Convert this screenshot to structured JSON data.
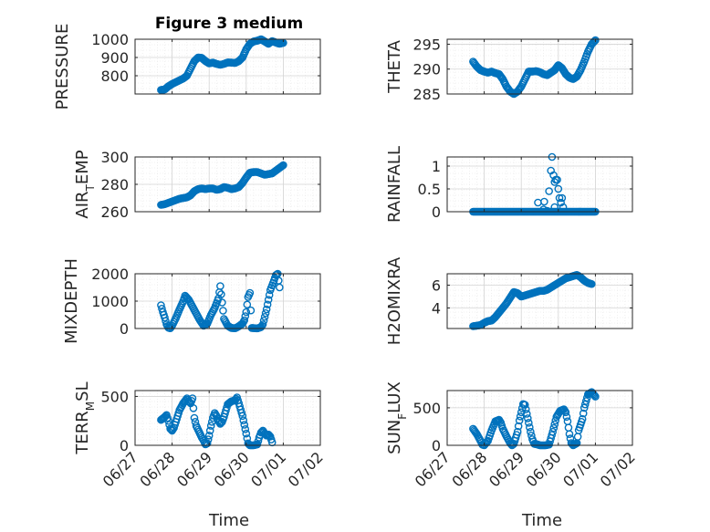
{
  "figure_title": "Figure 3 medium",
  "colors": {
    "marker": "#0072BD",
    "axes": "#262626",
    "grid": "#dcdcdc",
    "bg": "#ffffff"
  },
  "chart_data": [
    {
      "id": "pressure",
      "type": "scatter",
      "ylabel": "PRESSURE",
      "ylim": [
        700,
        1000
      ],
      "yticks": [
        800,
        900,
        1000
      ],
      "xlim": [
        0,
        5
      ],
      "grid": true,
      "keys": [
        [
          0.7,
          722
        ],
        [
          0.8,
          725
        ],
        [
          0.9,
          742
        ],
        [
          1.0,
          755
        ],
        [
          1.1,
          765
        ],
        [
          1.2,
          775
        ],
        [
          1.3,
          785
        ],
        [
          1.4,
          800
        ],
        [
          1.5,
          840
        ],
        [
          1.6,
          880
        ],
        [
          1.7,
          900
        ],
        [
          1.8,
          898
        ],
        [
          1.9,
          880
        ],
        [
          2.0,
          868
        ],
        [
          2.1,
          872
        ],
        [
          2.2,
          865
        ],
        [
          2.3,
          860
        ],
        [
          2.4,
          865
        ],
        [
          2.5,
          873
        ],
        [
          2.6,
          872
        ],
        [
          2.7,
          870
        ],
        [
          2.8,
          880
        ],
        [
          2.9,
          900
        ],
        [
          3.0,
          945
        ],
        [
          3.1,
          975
        ],
        [
          3.2,
          988
        ],
        [
          3.3,
          992
        ],
        [
          3.4,
          1000
        ],
        [
          3.5,
          988
        ],
        [
          3.6,
          975
        ],
        [
          3.7,
          990
        ],
        [
          3.8,
          982
        ],
        [
          3.9,
          975
        ],
        [
          4.0,
          980
        ]
      ]
    },
    {
      "id": "theta",
      "type": "scatter",
      "ylabel": "THETA",
      "ylim": [
        285,
        296
      ],
      "yticks": [
        285,
        290,
        295
      ],
      "xlim": [
        0,
        5
      ],
      "grid": true,
      "keys": [
        [
          0.7,
          291.5
        ],
        [
          0.8,
          290.5
        ],
        [
          0.9,
          289.8
        ],
        [
          1.0,
          289.5
        ],
        [
          1.1,
          289.3
        ],
        [
          1.2,
          289.5
        ],
        [
          1.3,
          289.2
        ],
        [
          1.4,
          289.0
        ],
        [
          1.5,
          288.0
        ],
        [
          1.6,
          286.5
        ],
        [
          1.7,
          285.5
        ],
        [
          1.8,
          285.0
        ],
        [
          1.9,
          285.5
        ],
        [
          2.0,
          286.5
        ],
        [
          2.1,
          288.0
        ],
        [
          2.2,
          289.5
        ],
        [
          2.3,
          289.5
        ],
        [
          2.4,
          289.6
        ],
        [
          2.5,
          289.4
        ],
        [
          2.6,
          289.0
        ],
        [
          2.7,
          288.8
        ],
        [
          2.8,
          289.3
        ],
        [
          2.9,
          289.8
        ],
        [
          3.0,
          290.8
        ],
        [
          3.1,
          290.2
        ],
        [
          3.2,
          289.0
        ],
        [
          3.3,
          288.3
        ],
        [
          3.4,
          288.0
        ],
        [
          3.5,
          288.5
        ],
        [
          3.6,
          289.8
        ],
        [
          3.7,
          291.5
        ],
        [
          3.8,
          293.5
        ],
        [
          3.9,
          295.0
        ],
        [
          4.0,
          295.8
        ]
      ]
    },
    {
      "id": "airtemp",
      "type": "scatter",
      "ylabel": "AIR_TEMP",
      "ylim": [
        260,
        300
      ],
      "yticks": [
        260,
        280,
        300
      ],
      "xlim": [
        0,
        5
      ],
      "grid": true,
      "keys": [
        [
          0.7,
          265
        ],
        [
          0.8,
          265.5
        ],
        [
          0.9,
          266.5
        ],
        [
          1.0,
          267.5
        ],
        [
          1.1,
          268.5
        ],
        [
          1.2,
          269.5
        ],
        [
          1.3,
          270
        ],
        [
          1.4,
          270.5
        ],
        [
          1.5,
          272
        ],
        [
          1.6,
          275
        ],
        [
          1.7,
          276.5
        ],
        [
          1.8,
          277
        ],
        [
          1.9,
          276.5
        ],
        [
          2.0,
          277
        ],
        [
          2.1,
          277
        ],
        [
          2.2,
          276
        ],
        [
          2.3,
          276.5
        ],
        [
          2.4,
          278
        ],
        [
          2.5,
          277.5
        ],
        [
          2.6,
          276.5
        ],
        [
          2.7,
          277
        ],
        [
          2.8,
          278
        ],
        [
          2.9,
          281
        ],
        [
          3.0,
          285
        ],
        [
          3.1,
          288.5
        ],
        [
          3.2,
          289
        ],
        [
          3.3,
          289
        ],
        [
          3.4,
          288
        ],
        [
          3.5,
          287
        ],
        [
          3.6,
          287.5
        ],
        [
          3.7,
          288
        ],
        [
          3.8,
          290
        ],
        [
          3.9,
          292
        ],
        [
          4.0,
          294
        ]
      ]
    },
    {
      "id": "rainfall",
      "type": "scatter",
      "ylabel": "RAINFALL",
      "ylim": [
        0,
        1.2
      ],
      "yticks": [
        0,
        0.5,
        1
      ],
      "xlim": [
        0,
        5
      ],
      "grid": true,
      "keys": [
        [
          0.7,
          0
        ],
        [
          4.0,
          0
        ]
      ],
      "spikes": [
        [
          2.45,
          0.2
        ],
        [
          2.62,
          0.22
        ],
        [
          2.75,
          0.45
        ],
        [
          2.8,
          0.9
        ],
        [
          2.83,
          1.2
        ],
        [
          2.87,
          0.8
        ],
        [
          2.9,
          0.65
        ],
        [
          2.93,
          0.7
        ],
        [
          2.97,
          0.7
        ],
        [
          3.0,
          0.5
        ],
        [
          3.03,
          0.3
        ],
        [
          3.07,
          0.2
        ],
        [
          3.1,
          0.3
        ],
        [
          3.13,
          0.1
        ],
        [
          2.6,
          0.05
        ],
        [
          2.7,
          0.02
        ],
        [
          2.9,
          0.1
        ]
      ]
    },
    {
      "id": "mixdepth",
      "type": "scatter",
      "ylabel": "MIXDEPTH",
      "ylim": [
        0,
        2000
      ],
      "yticks": [
        0,
        1000,
        2000
      ],
      "xlim": [
        0,
        5
      ],
      "grid": true,
      "keys": [
        [
          0.7,
          850
        ],
        [
          0.75,
          600
        ],
        [
          0.8,
          400
        ],
        [
          0.85,
          150
        ],
        [
          0.9,
          30
        ],
        [
          0.95,
          10
        ],
        [
          1.0,
          100
        ],
        [
          1.1,
          380
        ],
        [
          1.2,
          700
        ],
        [
          1.3,
          1000
        ],
        [
          1.35,
          1200
        ],
        [
          1.45,
          1050
        ],
        [
          1.55,
          800
        ],
        [
          1.65,
          550
        ],
        [
          1.75,
          300
        ],
        [
          1.85,
          100
        ],
        [
          1.95,
          180
        ],
        [
          2.05,
          500
        ],
        [
          2.15,
          750
        ],
        [
          2.25,
          1100
        ],
        [
          2.3,
          1550
        ],
        [
          2.4,
          350
        ],
        [
          2.5,
          100
        ],
        [
          2.6,
          20
        ],
        [
          2.7,
          10
        ],
        [
          2.8,
          80
        ],
        [
          2.9,
          180
        ],
        [
          2.95,
          300
        ],
        [
          3.0,
          600
        ],
        [
          3.05,
          1150
        ],
        [
          3.1,
          1300
        ],
        [
          3.15,
          20
        ],
        [
          3.3,
          5
        ],
        [
          3.4,
          50
        ],
        [
          3.45,
          150
        ],
        [
          3.55,
          700
        ],
        [
          3.65,
          1400
        ],
        [
          3.75,
          1750
        ],
        [
          3.8,
          1950
        ],
        [
          3.85,
          2000
        ],
        [
          3.9,
          1500
        ]
      ]
    },
    {
      "id": "h2omixra",
      "type": "scatter",
      "ylabel": "H2OMIXRA",
      "ylim": [
        2.2,
        7
      ],
      "yticks": [
        4,
        6
      ],
      "xlim": [
        0,
        5
      ],
      "grid": true,
      "keys": [
        [
          0.7,
          2.4
        ],
        [
          0.8,
          2.45
        ],
        [
          0.9,
          2.5
        ],
        [
          1.0,
          2.7
        ],
        [
          1.1,
          2.85
        ],
        [
          1.2,
          2.9
        ],
        [
          1.3,
          3.2
        ],
        [
          1.4,
          3.6
        ],
        [
          1.5,
          4.0
        ],
        [
          1.6,
          4.4
        ],
        [
          1.7,
          4.9
        ],
        [
          1.8,
          5.4
        ],
        [
          1.9,
          5.3
        ],
        [
          2.0,
          5.0
        ],
        [
          2.1,
          5.1
        ],
        [
          2.2,
          5.2
        ],
        [
          2.3,
          5.3
        ],
        [
          2.4,
          5.4
        ],
        [
          2.5,
          5.5
        ],
        [
          2.6,
          5.5
        ],
        [
          2.7,
          5.6
        ],
        [
          2.8,
          5.8
        ],
        [
          2.9,
          6.0
        ],
        [
          3.0,
          6.2
        ],
        [
          3.1,
          6.4
        ],
        [
          3.2,
          6.6
        ],
        [
          3.3,
          6.7
        ],
        [
          3.4,
          6.8
        ],
        [
          3.5,
          6.9
        ],
        [
          3.6,
          6.7
        ],
        [
          3.7,
          6.4
        ],
        [
          3.8,
          6.2
        ],
        [
          3.9,
          6.1
        ]
      ]
    },
    {
      "id": "terrmsl",
      "type": "scatter",
      "ylabel": "TERR_MSL",
      "ylim": [
        0,
        560
      ],
      "yticks": [
        0,
        500
      ],
      "xlim": [
        0,
        5
      ],
      "grid": true,
      "keys": [
        [
          0.7,
          260
        ],
        [
          0.8,
          290
        ],
        [
          0.85,
          310
        ],
        [
          0.9,
          250
        ],
        [
          0.95,
          170
        ],
        [
          1.0,
          150
        ],
        [
          1.05,
          180
        ],
        [
          1.1,
          240
        ],
        [
          1.2,
          360
        ],
        [
          1.3,
          430
        ],
        [
          1.4,
          480
        ],
        [
          1.45,
          450
        ],
        [
          1.5,
          430
        ],
        [
          1.55,
          480
        ],
        [
          1.6,
          280
        ],
        [
          1.65,
          200
        ],
        [
          1.7,
          160
        ],
        [
          1.75,
          120
        ],
        [
          1.8,
          80
        ],
        [
          1.85,
          50
        ],
        [
          1.9,
          10
        ],
        [
          1.95,
          20
        ],
        [
          2.0,
          100
        ],
        [
          2.05,
          200
        ],
        [
          2.1,
          280
        ],
        [
          2.15,
          330
        ],
        [
          2.2,
          300
        ],
        [
          2.25,
          250
        ],
        [
          2.3,
          220
        ],
        [
          2.35,
          240
        ],
        [
          2.4,
          290
        ],
        [
          2.5,
          420
        ],
        [
          2.6,
          450
        ],
        [
          2.7,
          460
        ],
        [
          2.75,
          490
        ],
        [
          2.8,
          430
        ],
        [
          2.9,
          300
        ],
        [
          3.0,
          120
        ],
        [
          3.05,
          20
        ],
        [
          3.1,
          0
        ],
        [
          3.2,
          0
        ],
        [
          3.3,
          10
        ],
        [
          3.35,
          80
        ],
        [
          3.4,
          130
        ],
        [
          3.45,
          150
        ],
        [
          3.5,
          120
        ],
        [
          3.55,
          100
        ],
        [
          3.6,
          110
        ],
        [
          3.65,
          90
        ],
        [
          3.7,
          30
        ]
      ]
    },
    {
      "id": "sunflux",
      "type": "scatter",
      "ylabel": "SUN_FLUX",
      "ylim": [
        0,
        730
      ],
      "yticks": [
        0,
        500
      ],
      "xlim": [
        0,
        5
      ],
      "grid": true,
      "keys": [
        [
          0.7,
          220
        ],
        [
          0.8,
          150
        ],
        [
          0.9,
          60
        ],
        [
          0.95,
          10
        ],
        [
          1.0,
          0
        ],
        [
          1.1,
          60
        ],
        [
          1.2,
          200
        ],
        [
          1.3,
          320
        ],
        [
          1.4,
          340
        ],
        [
          1.45,
          300
        ],
        [
          1.5,
          220
        ],
        [
          1.6,
          120
        ],
        [
          1.7,
          30
        ],
        [
          1.75,
          0
        ],
        [
          1.8,
          20
        ],
        [
          1.9,
          180
        ],
        [
          1.95,
          330
        ],
        [
          2.05,
          550
        ],
        [
          2.1,
          540
        ],
        [
          2.15,
          420
        ],
        [
          2.2,
          300
        ],
        [
          2.25,
          180
        ],
        [
          2.3,
          80
        ],
        [
          2.35,
          20
        ],
        [
          2.45,
          10
        ],
        [
          2.5,
          0
        ],
        [
          2.65,
          0
        ],
        [
          2.75,
          10
        ],
        [
          2.85,
          180
        ],
        [
          2.95,
          380
        ],
        [
          3.05,
          460
        ],
        [
          3.15,
          480
        ],
        [
          3.2,
          440
        ],
        [
          3.25,
          320
        ],
        [
          3.3,
          150
        ],
        [
          3.35,
          30
        ],
        [
          3.4,
          0
        ],
        [
          3.5,
          30
        ],
        [
          3.55,
          200
        ],
        [
          3.65,
          350
        ],
        [
          3.7,
          500
        ],
        [
          3.8,
          680
        ],
        [
          3.9,
          710
        ],
        [
          4.0,
          650
        ]
      ]
    }
  ],
  "xtick_labels": [
    "06/27",
    "06/28",
    "06/29",
    "06/30",
    "07/01",
    "07/02"
  ],
  "xlabel": "Time"
}
